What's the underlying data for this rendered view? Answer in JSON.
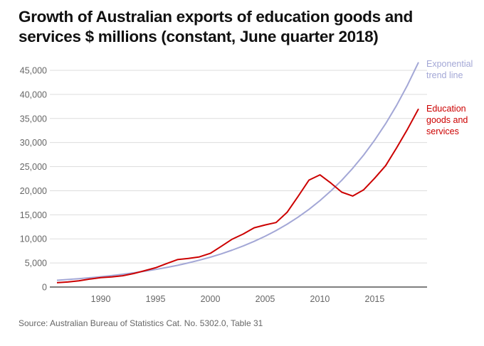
{
  "chart_data": {
    "type": "line",
    "title": "Growth of Australian exports of education goods and services $ millions (constant, June quarter 2018)",
    "source": "Source: Australian Bureau of Statistics Cat. No. 5302.0, Table 31",
    "xlabel": "",
    "ylabel": "",
    "xlim": [
      1986,
      2019
    ],
    "ylim": [
      0,
      45000
    ],
    "x_ticks": [
      1990,
      1995,
      2000,
      2005,
      2010,
      2015
    ],
    "y_ticks": [
      0,
      5000,
      10000,
      15000,
      20000,
      25000,
      30000,
      35000,
      40000,
      45000
    ],
    "y_tick_labels": [
      "0",
      "5,000",
      "10,000",
      "15,000",
      "20,000",
      "25,000",
      "30,000",
      "35,000",
      "40,000",
      "45,000"
    ],
    "grid": true,
    "series": [
      {
        "name": "Exponential trend line",
        "legend_lines": [
          "Exponential",
          "trend line"
        ],
        "color": "#a3a7d6",
        "x": [
          1986,
          1987,
          1988,
          1989,
          1990,
          1991,
          1992,
          1993,
          1994,
          1995,
          1996,
          1997,
          1998,
          1999,
          2000,
          2001,
          2002,
          2003,
          2004,
          2005,
          2006,
          2007,
          2008,
          2009,
          2010,
          2011,
          2012,
          2013,
          2014,
          2015,
          2016,
          2017,
          2018,
          2019
        ],
        "values": [
          1400,
          1557,
          1732,
          1926,
          2142,
          2382,
          2649,
          2946,
          3276,
          3643,
          4052,
          4506,
          5011,
          5573,
          6198,
          6893,
          7665,
          8525,
          9480,
          10543,
          11725,
          13040,
          14501,
          16127,
          17935,
          19945,
          22181,
          24667,
          27432,
          30507,
          33927,
          37730,
          41959,
          46663
        ]
      },
      {
        "name": "Education goods and services",
        "legend_lines": [
          "Education",
          "goods and",
          "services"
        ],
        "color": "#cc0000",
        "x": [
          1986,
          1987,
          1988,
          1989,
          1990,
          1991,
          1992,
          1993,
          1994,
          1995,
          1996,
          1997,
          1998,
          1999,
          2000,
          2001,
          2002,
          2003,
          2004,
          2005,
          2006,
          2007,
          2008,
          2009,
          2010,
          2011,
          2012,
          2013,
          2014,
          2015,
          2016,
          2017,
          2018,
          2019
        ],
        "values": [
          900,
          1050,
          1300,
          1650,
          1950,
          2100,
          2350,
          2800,
          3400,
          4000,
          4850,
          5700,
          5950,
          6250,
          7000,
          8450,
          9950,
          11000,
          12300,
          12900,
          13400,
          15500,
          18800,
          22200,
          23300,
          21600,
          19700,
          18900,
          20200,
          22600,
          25200,
          28900,
          32800,
          37000
        ]
      }
    ]
  }
}
